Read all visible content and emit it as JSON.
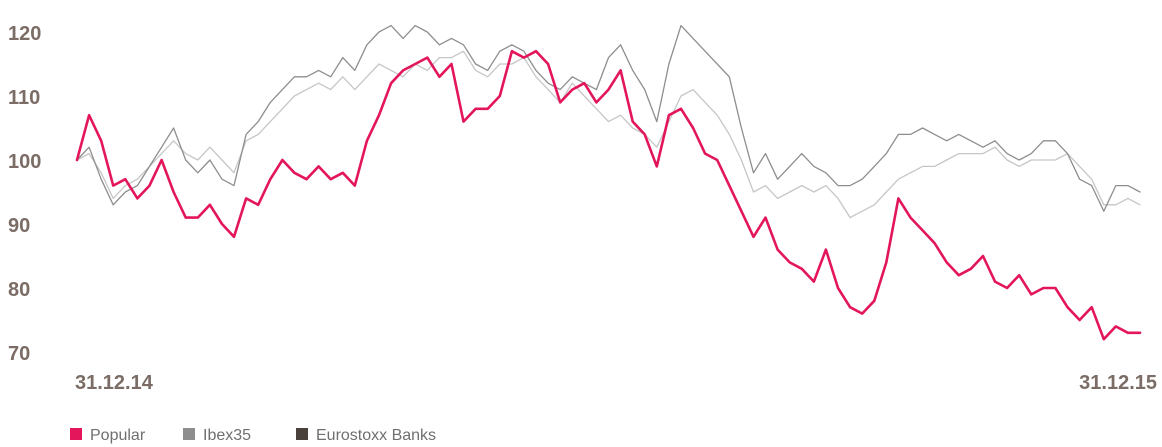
{
  "chart_data": {
    "type": "line",
    "title": "",
    "xlabel": "",
    "ylabel": "",
    "ylim": [
      70,
      122
    ],
    "yticks": [
      "120",
      "110",
      "100",
      "90",
      "80",
      "70"
    ],
    "x_start_label": "31.12.14",
    "x_end_label": "31.12.15",
    "grid": false,
    "legend_position": "bottom-left",
    "colors": {
      "popular": "#e3165b",
      "ibex35": "#c6c6c6",
      "eurostoxx": "#8e8e8e",
      "tick_text": "#7b6d66",
      "legend_text": "#6f6f6f",
      "legend_eurostoxx_swatch": "#4a403c"
    },
    "series": [
      {
        "name": "Popular",
        "key": "popular",
        "values": [
          100,
          107,
          103,
          96,
          97,
          94,
          96,
          100,
          95,
          91,
          91,
          93,
          90,
          88,
          94,
          93,
          97,
          100,
          98,
          97,
          99,
          97,
          98,
          96,
          103,
          107,
          112,
          114,
          115,
          116,
          113,
          115,
          106,
          108,
          108,
          110,
          117,
          116,
          117,
          115,
          109,
          111,
          112,
          109,
          111,
          114,
          106,
          104,
          99,
          107,
          108,
          105,
          101,
          100,
          96,
          92,
          88,
          91,
          86,
          84,
          83,
          81,
          86,
          80,
          77,
          76,
          78,
          84,
          94,
          91,
          89,
          87,
          84,
          82,
          83,
          85,
          81,
          80,
          82,
          79,
          80,
          80,
          77,
          75,
          77,
          72,
          74,
          73,
          73
        ]
      },
      {
        "name": "Ibex35",
        "key": "ibex35",
        "values": [
          100,
          101,
          98,
          94,
          96,
          97,
          99,
          101,
          103,
          101,
          100,
          102,
          100,
          98,
          103,
          104,
          106,
          108,
          110,
          111,
          112,
          111,
          113,
          111,
          113,
          115,
          114,
          113,
          115,
          114,
          116,
          116,
          117,
          114,
          113,
          115,
          115,
          116,
          113,
          111,
          109,
          112,
          110,
          108,
          106,
          107,
          105,
          104,
          102,
          106,
          110,
          111,
          109,
          107,
          104,
          100,
          95,
          96,
          94,
          95,
          96,
          95,
          96,
          94,
          91,
          92,
          93,
          95,
          97,
          98,
          99,
          99,
          100,
          101,
          101,
          101,
          102,
          100,
          99,
          100,
          100,
          100,
          101,
          99,
          97,
          93,
          93,
          94,
          93
        ]
      },
      {
        "name": "Eurostoxx Banks",
        "key": "eurostoxx",
        "values": [
          100,
          102,
          97,
          93,
          95,
          96,
          99,
          102,
          105,
          100,
          98,
          100,
          97,
          96,
          104,
          106,
          109,
          111,
          113,
          113,
          114,
          113,
          116,
          114,
          118,
          120,
          121,
          119,
          121,
          120,
          118,
          119,
          118,
          115,
          114,
          117,
          118,
          117,
          114,
          112,
          111,
          113,
          112,
          111,
          116,
          118,
          114,
          111,
          106,
          115,
          121,
          119,
          117,
          115,
          113,
          105,
          98,
          101,
          97,
          99,
          101,
          99,
          98,
          96,
          96,
          97,
          99,
          101,
          104,
          104,
          105,
          104,
          103,
          104,
          103,
          102,
          103,
          101,
          100,
          101,
          103,
          103,
          101,
          97,
          96,
          92,
          96,
          96,
          95
        ]
      }
    ]
  }
}
